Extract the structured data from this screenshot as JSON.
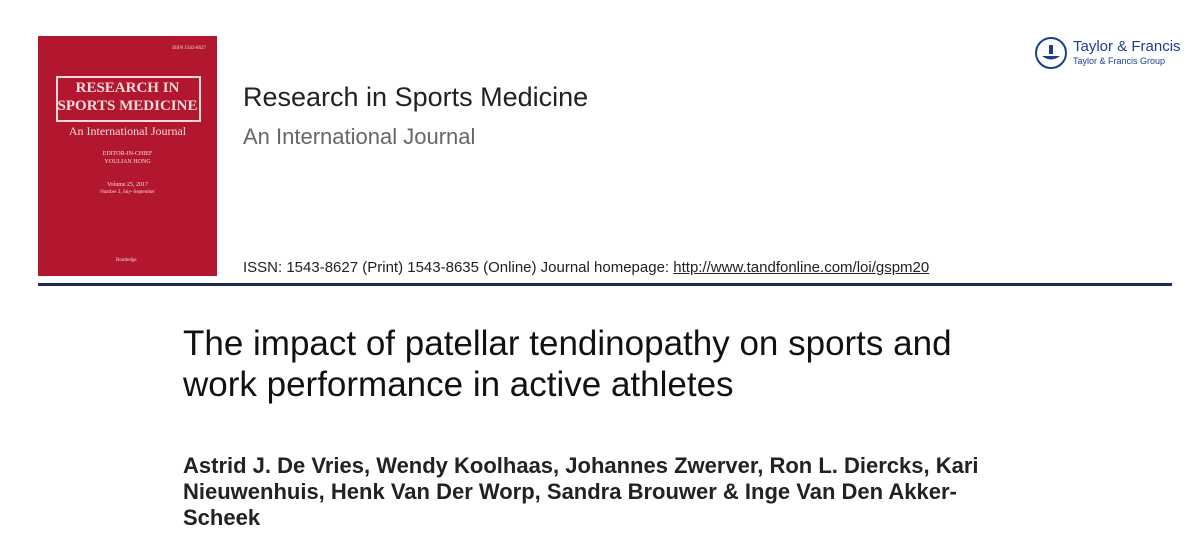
{
  "cover": {
    "issn": "ISSN 1543-8627",
    "title_line_1": "RESEARCH IN",
    "title_line_2": "SPORTS MEDICINE",
    "subtitle": "An International Journal",
    "editor_label": "EDITOR-IN-CHIEF",
    "editor": "YOULIAN HONG",
    "volume": "Volume 25, 2017",
    "issue": "Number 3, July–September",
    "publisher": "Routledge"
  },
  "publisher": {
    "name": "Taylor & Francis",
    "group": "Taylor & Francis Group"
  },
  "journal": {
    "title": "Research in Sports Medicine",
    "subtitle": "An International Journal",
    "issn_text": "ISSN: 1543-8627 (Print) 1543-8635 (Online) Journal homepage: ",
    "homepage_url": "http://www.tandfonline.com/loi/gspm20"
  },
  "article": {
    "title_lines": [
      "The impact of patellar tendinopathy on sports and",
      "work performance in active athletes"
    ],
    "author_lines": [
      "Astrid J. De Vries, Wendy Koolhaas, Johannes Zwerver, Ron L. Diercks, Kari",
      "Nieuwenhuis, Henk Van Der Worp, Sandra Brouwer & Inge Van Den Akker-",
      "Scheek"
    ]
  }
}
